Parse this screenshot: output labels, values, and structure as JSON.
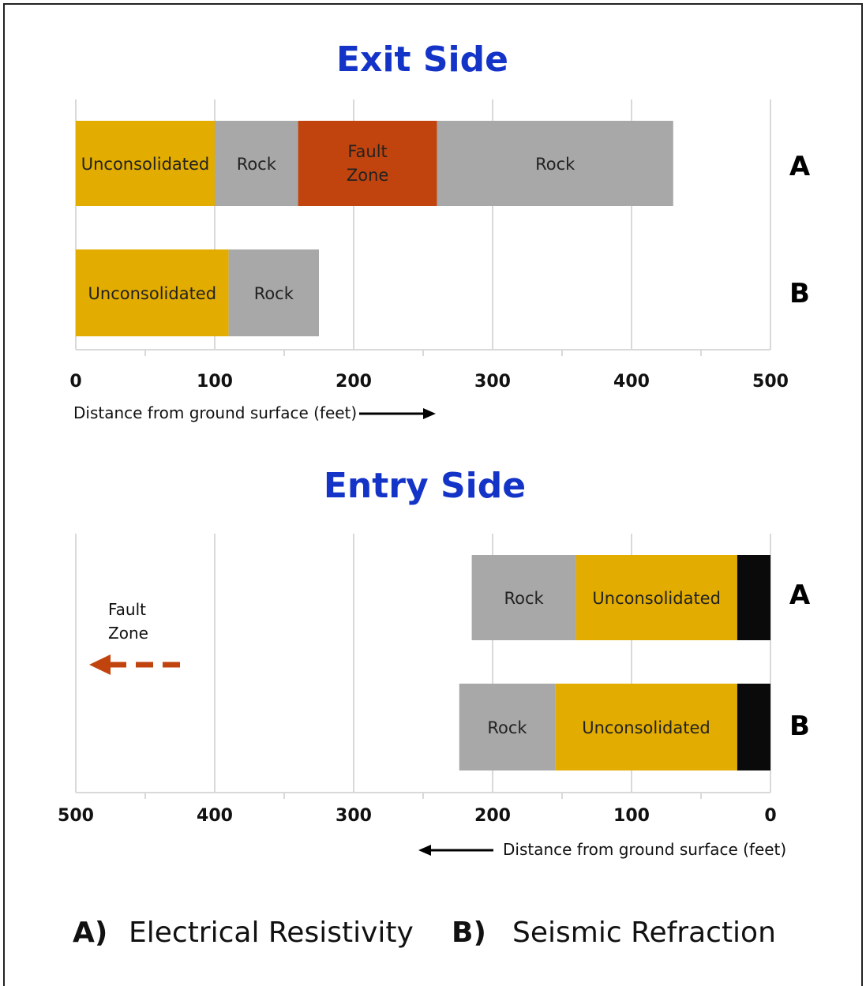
{
  "colors": {
    "Unconsolidated": "#e2ac00",
    "Rock": "#a8a8a8",
    "Fault Zone": "#c1440e",
    "Unlabeled": "#0a0a0a",
    "title": "#1434c8",
    "arrow_fault": "#c1440e"
  },
  "chart_data": [
    {
      "type": "bar",
      "orientation": "horizontal",
      "stacked": true,
      "title": "Exit Side",
      "xlabel": "Distance from ground surface (feet)",
      "xlim": [
        0,
        500
      ],
      "x_ticks": [
        "0",
        "100",
        "200",
        "300",
        "400",
        "500"
      ],
      "x_direction": "left-to-right",
      "grid": true,
      "categories": [
        "A",
        "B"
      ],
      "rows": [
        {
          "label": "A",
          "segments": [
            {
              "label": "Unconsolidated",
              "start": 0,
              "end": 100
            },
            {
              "label": "Rock",
              "start": 100,
              "end": 160
            },
            {
              "label": "Fault Zone",
              "start": 160,
              "end": 260
            },
            {
              "label": "Rock",
              "start": 260,
              "end": 430
            }
          ]
        },
        {
          "label": "B",
          "segments": [
            {
              "label": "Unconsolidated",
              "start": 0,
              "end": 110
            },
            {
              "label": "Rock",
              "start": 110,
              "end": 175
            }
          ]
        }
      ]
    },
    {
      "type": "bar",
      "orientation": "horizontal",
      "stacked": true,
      "title": "Entry Side",
      "xlabel": "Distance from ground surface (feet)",
      "xlim": [
        500,
        0
      ],
      "x_ticks": [
        "500",
        "400",
        "300",
        "200",
        "100",
        "0"
      ],
      "x_direction": "right-to-left",
      "grid": true,
      "categories": [
        "A",
        "B"
      ],
      "annotation": "Fault Zone",
      "rows": [
        {
          "label": "A",
          "segments": [
            {
              "label": "",
              "start": 0,
              "end": 24
            },
            {
              "label": "Unconsolidated",
              "start": 24,
              "end": 140
            },
            {
              "label": "Rock",
              "start": 140,
              "end": 215
            }
          ]
        },
        {
          "label": "B",
          "segments": [
            {
              "label": "",
              "start": 0,
              "end": 24
            },
            {
              "label": "Unconsolidated",
              "start": 24,
              "end": 155
            },
            {
              "label": "Rock",
              "start": 155,
              "end": 224
            }
          ]
        }
      ]
    }
  ],
  "legend": [
    {
      "key": "A)",
      "text": "Electrical Resistivity"
    },
    {
      "key": "B)",
      "text": "Seismic Refraction"
    }
  ]
}
